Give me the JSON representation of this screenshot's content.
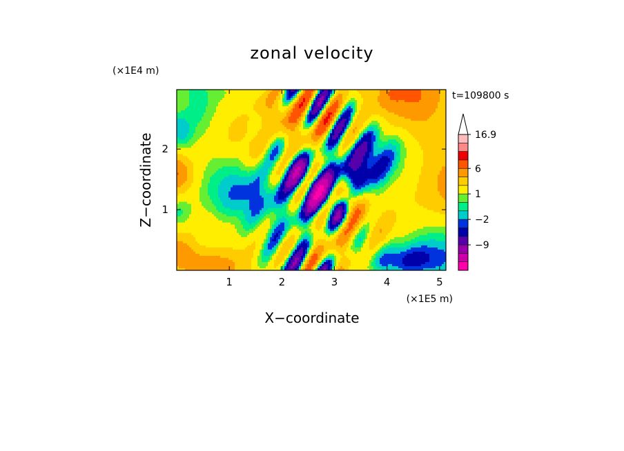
{
  "chart_data": {
    "type": "heatmap",
    "title": "zonal velocity",
    "xlabel": "X−coordinate",
    "ylabel": "Z−coordinate",
    "x_scale_label": "(×1E5 m)",
    "y_scale_label": "(×1E4 m)",
    "time_label": "t=109800 s",
    "xlim": [
      0,
      5.12
    ],
    "ylim": [
      0,
      2.98
    ],
    "x_ticks": [
      1,
      2,
      3,
      4,
      5
    ],
    "x_tick_labels": [
      "1",
      "2",
      "3",
      "4",
      "5"
    ],
    "y_ticks": [
      1,
      2
    ],
    "y_tick_labels": [
      "1",
      "2"
    ],
    "colorbar": {
      "extend": "max",
      "levels": [
        -18,
        -13,
        -9,
        -6,
        -4,
        -2,
        -1,
        0,
        1,
        2,
        4,
        6,
        8,
        11,
        13.9,
        16.9
      ],
      "colors": [
        "#ff00aa",
        "#cc00aa",
        "#9900aa",
        "#5500aa",
        "#0000aa",
        "#0033dd",
        "#00cccc",
        "#00ee88",
        "#66ee33",
        "#ffee00",
        "#ffcc00",
        "#ff9900",
        "#ff5500",
        "#ee0000",
        "#ff8888",
        "#ffbbbb"
      ],
      "labeled_levels": [
        16.9,
        6,
        1,
        -2,
        -9
      ],
      "labels": [
        "16.9",
        "6",
        "1",
        "−2",
        "−9"
      ]
    }
  }
}
